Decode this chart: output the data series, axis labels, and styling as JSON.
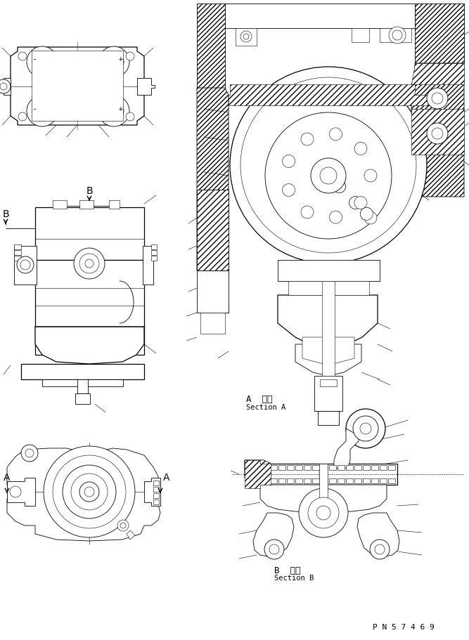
{
  "bg_color": "#ffffff",
  "line_color": "#000000",
  "fig_width": 6.67,
  "fig_height": 9.11,
  "dpi": 100,
  "section_a_label_jp": "A  断面",
  "section_a_label_en": "Section A",
  "section_b_label_jp": "B  断面",
  "section_b_label_en": "Section B",
  "part_number": "P N 5 7 4 6 9"
}
